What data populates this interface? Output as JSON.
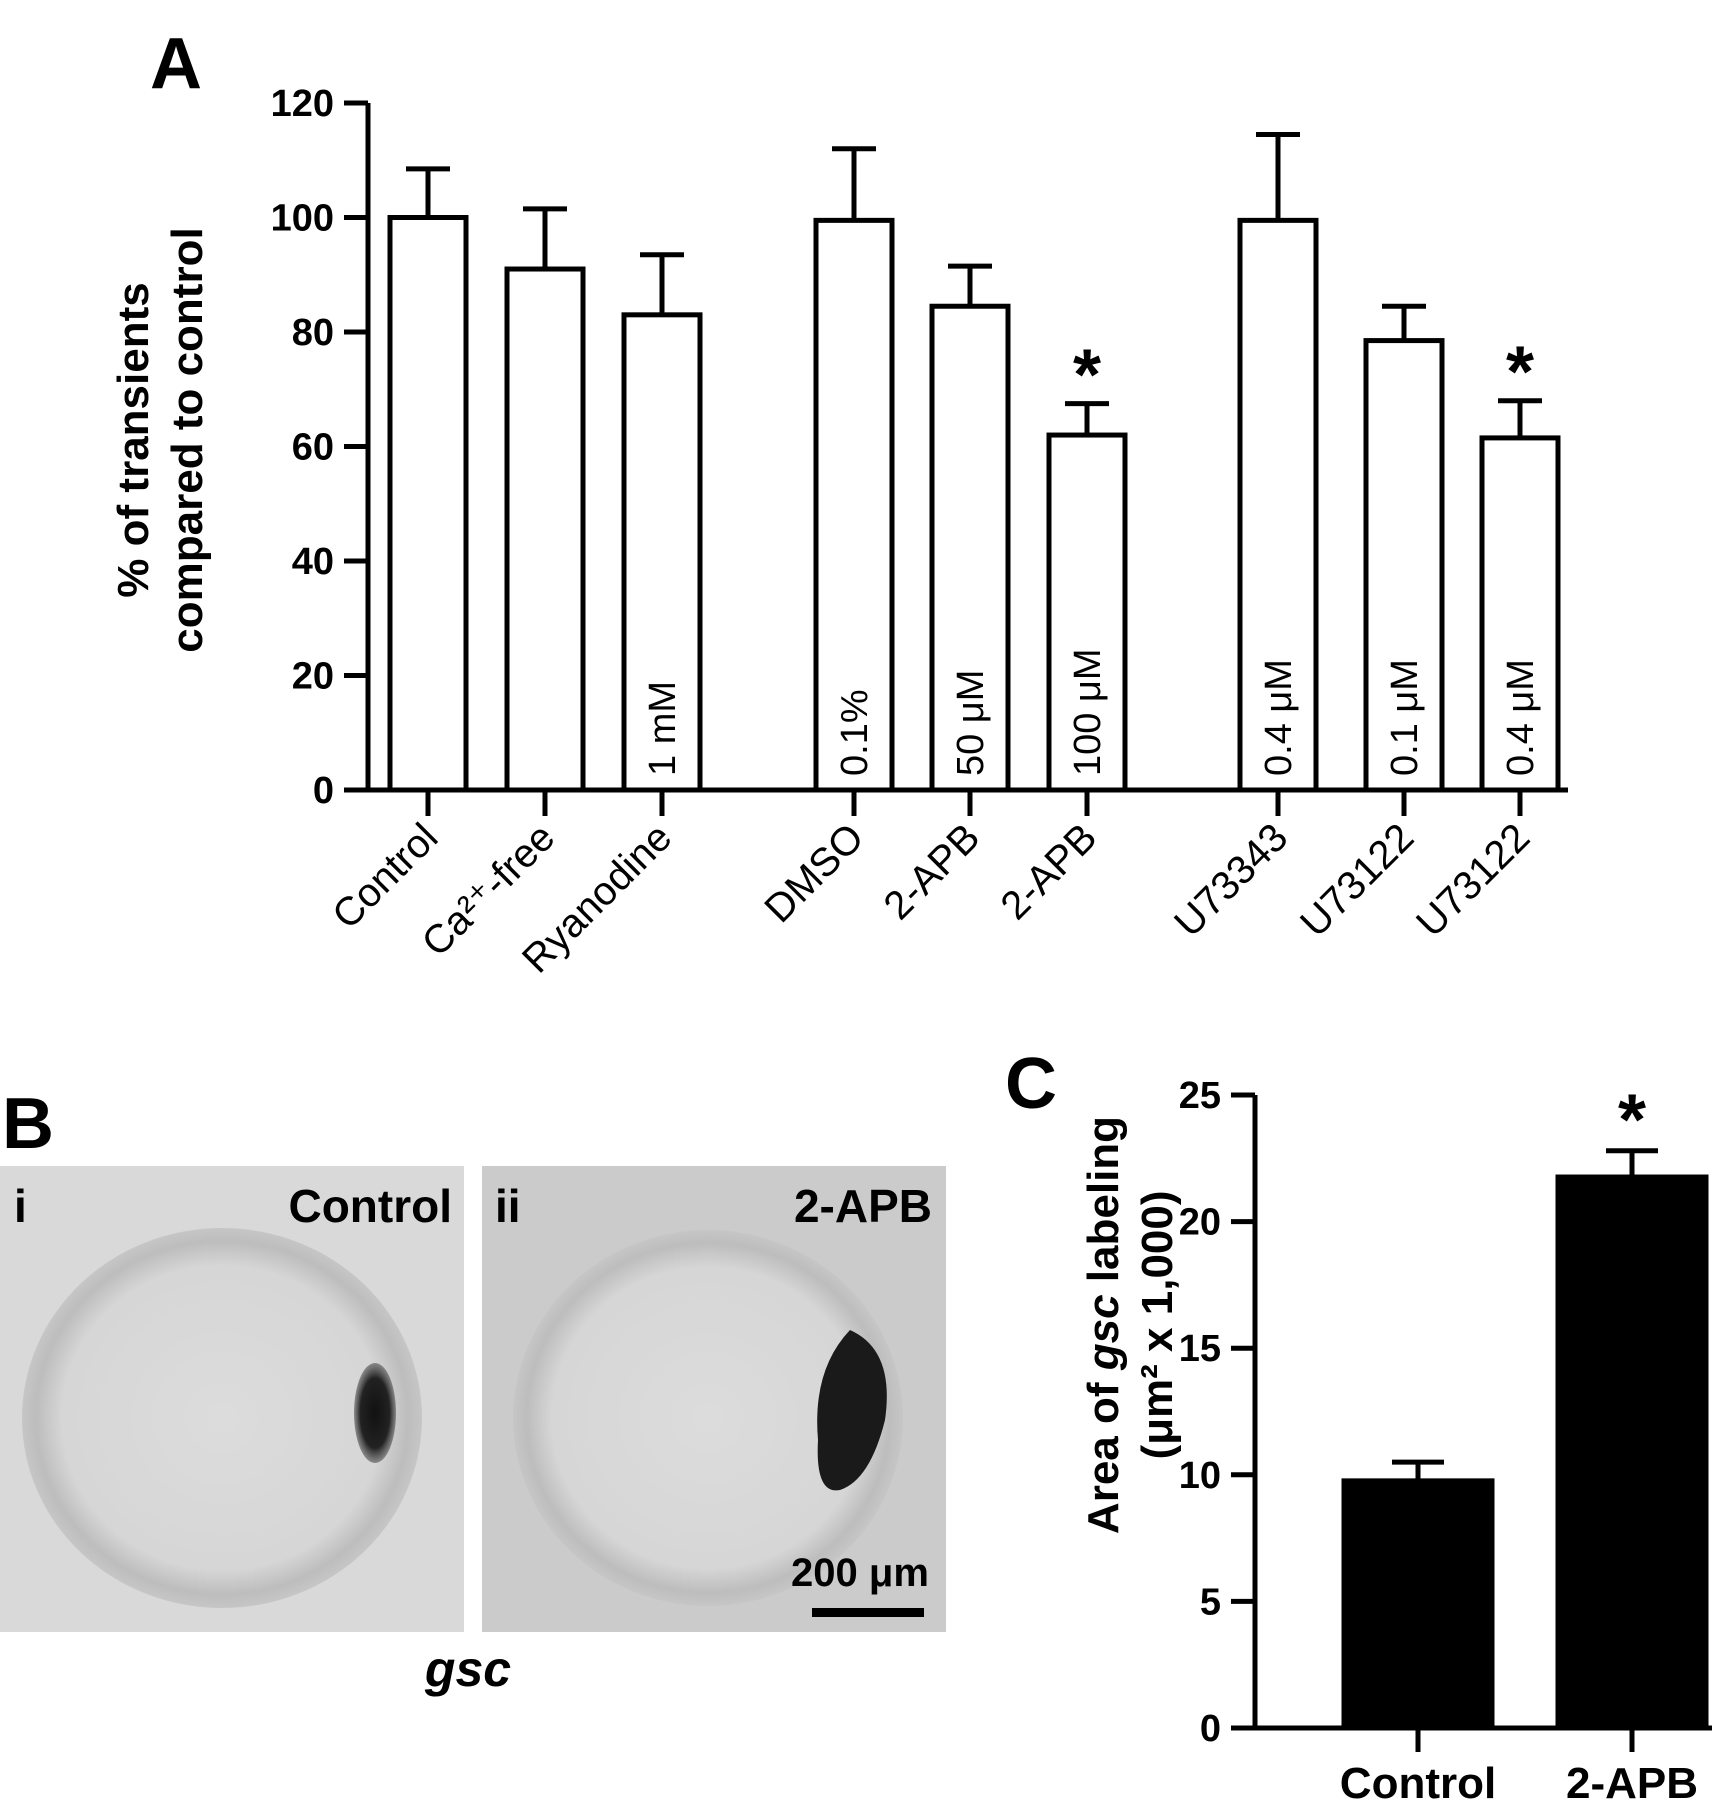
{
  "panels": {
    "a": "A",
    "b": "B",
    "c": "C"
  },
  "chart_data": [
    {
      "panel": "A",
      "type": "bar",
      "ylabel_line1": "% of transients",
      "ylabel_line2": "compared to control",
      "ylim": [
        0,
        120
      ],
      "yticks": [
        0,
        20,
        40,
        60,
        80,
        100,
        120
      ],
      "bars": [
        {
          "category": "Control",
          "value": 100,
          "error": 8.5,
          "bar_label": "",
          "significant": false
        },
        {
          "category": "Ca²⁺-free",
          "value": 91,
          "error": 10.5,
          "bar_label": "",
          "significant": false
        },
        {
          "category": "Ryanodine",
          "value": 83,
          "error": 10.5,
          "bar_label": "1 mM",
          "significant": false
        },
        {
          "category": "DMSO",
          "value": 99.5,
          "error": 12.5,
          "bar_label": "0.1%",
          "significant": false
        },
        {
          "category": "2-APB",
          "value": 84.5,
          "error": 7,
          "bar_label": "50 μM",
          "significant": false
        },
        {
          "category": "2-APB",
          "value": 62,
          "error": 5.5,
          "bar_label": "100 μM",
          "significant": true
        },
        {
          "category": "U73343",
          "value": 99.5,
          "error": 15,
          "bar_label": "0.4 μM",
          "significant": false
        },
        {
          "category": "U73122",
          "value": 78.5,
          "error": 6,
          "bar_label": "0.1 μM",
          "significant": false
        },
        {
          "category": "U73122",
          "value": 61.5,
          "error": 6.5,
          "bar_label": "0.4 μM",
          "significant": true
        }
      ],
      "significance_marker": "*",
      "grid": false
    },
    {
      "panel": "C",
      "type": "bar",
      "ylabel_line1": "Area of gsc labeling",
      "ylabel_line2": "(μm² x 1,000)",
      "ylim": [
        0,
        25
      ],
      "yticks": [
        0,
        5,
        10,
        15,
        20,
        25
      ],
      "bars": [
        {
          "category": "Control",
          "value": 9.8,
          "error": 0.7,
          "significant": false
        },
        {
          "category": "2-APB",
          "value": 21.8,
          "error": 1.0,
          "significant": true
        }
      ],
      "significance_marker": "*",
      "grid": false
    }
  ],
  "images": {
    "left_label_roman": "i",
    "left_label_name": "Control",
    "right_label_roman": "ii",
    "right_label_name": "2-APB",
    "scale_bar_text": "200 μm",
    "caption": "gsc"
  }
}
